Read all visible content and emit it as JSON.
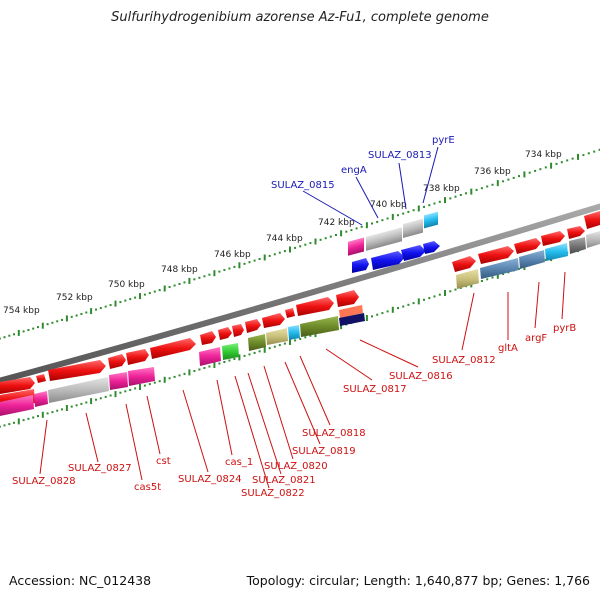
{
  "title": "Sulfurihydrogenibium azorense Az-Fu1, complete genome",
  "accession_label": "Accession: NC_012438",
  "summary_label": "Topology: circular; Length: 1,640,877 bp; Genes: 1,766",
  "ruler_ticks": [
    "734 kbp",
    "736 kbp",
    "738 kbp",
    "740 kbp",
    "742 kbp",
    "744 kbp",
    "746 kbp",
    "748 kbp",
    "750 kbp",
    "752 kbp",
    "754 kbp"
  ],
  "upper_gene_labels": [
    "pyrE",
    "SULAZ_0813",
    "engA",
    "SULAZ_0815"
  ],
  "lower_gene_labels": [
    "SULAZ_0812",
    "gltA",
    "argF",
    "pyrB",
    "SULAZ_0816",
    "SULAZ_0817",
    "SULAZ_0818",
    "SULAZ_0819",
    "SULAZ_0820",
    "SULAZ_0821",
    "SULAZ_0822",
    "cas_1",
    "SULAZ_0824",
    "cst",
    "cas5t",
    "SULAZ_0827",
    "SULAZ_0828"
  ],
  "colors": {
    "forward_gene": "#ee1111",
    "backbone": "#777777",
    "tick_dots": "#2e8b2e",
    "upper_labels": "#1a1ab5",
    "lower_labels": "#cc1111",
    "category_magenta": "#ee2299",
    "category_gray": "#bbbbbb",
    "category_blue": "#1111ee",
    "category_cyan": "#22bbee",
    "category_olive": "#6e8b2a",
    "category_khaki": "#c8c07a",
    "category_steel": "#5a86b0",
    "category_green": "#33cc33",
    "category_navy": "#111166",
    "category_salmon": "#ff7755"
  }
}
